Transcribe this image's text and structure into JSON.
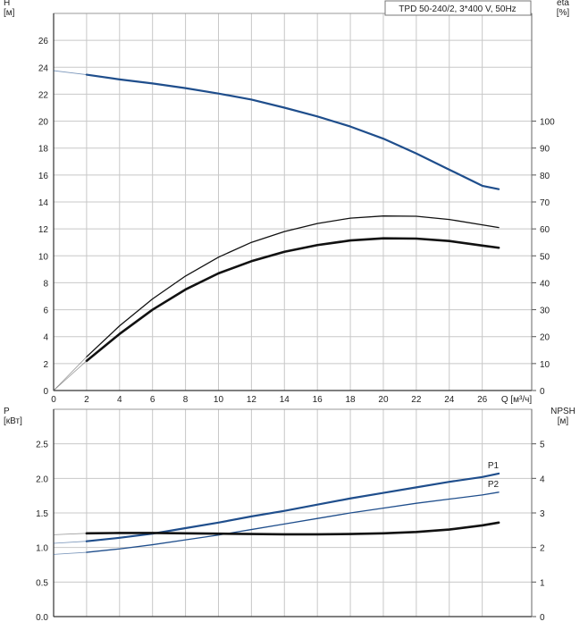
{
  "chart_data": [
    {
      "type": "line",
      "title": "TPD 50-240/2, 3*400 V, 50Hz",
      "xlabel": "Q [м³/ч]",
      "ylabel": "H\n[м]",
      "y2label": "eta\n[%]",
      "xlim": [
        0,
        29
      ],
      "ylim": [
        0,
        28
      ],
      "y2lim": [
        0,
        140
      ],
      "xticks": [
        0,
        2,
        4,
        6,
        8,
        10,
        12,
        14,
        16,
        18,
        20,
        22,
        24,
        26
      ],
      "xtick_labels": [
        "0",
        "2",
        "4",
        "6",
        "8",
        "10",
        "12",
        "14",
        "16",
        "18",
        "20",
        "22",
        "24",
        "26"
      ],
      "yticks": [
        0,
        2,
        4,
        6,
        8,
        10,
        12,
        14,
        16,
        18,
        20,
        22,
        24,
        26
      ],
      "ytick_labels": [
        "0",
        "2",
        "4",
        "6",
        "8",
        "10",
        "12",
        "14",
        "16",
        "18",
        "20",
        "22",
        "24",
        "26"
      ],
      "y2ticks": [
        0,
        10,
        20,
        30,
        40,
        50,
        60,
        70,
        80,
        90,
        100
      ],
      "y2tick_labels": [
        "0",
        "10",
        "20",
        "30",
        "40",
        "50",
        "60",
        "70",
        "80",
        "90",
        "100"
      ],
      "grid": true,
      "series": [
        {
          "color": "#1f4e8c",
          "axis": "left",
          "style": "main",
          "x": [
            2,
            4,
            6,
            8,
            10,
            12,
            14,
            16,
            18,
            20,
            22,
            24,
            26,
            27
          ],
          "values": [
            23.45,
            23.1,
            22.8,
            22.45,
            22.05,
            21.6,
            21.0,
            20.35,
            19.6,
            18.7,
            17.6,
            16.4,
            15.2,
            14.95
          ]
        },
        {
          "color": "#1f4e8c",
          "axis": "left",
          "style": "extrap",
          "x": [
            0,
            2
          ],
          "values": [
            23.75,
            23.45
          ]
        },
        {
          "color": "#111111",
          "axis": "right",
          "style": "thin",
          "x": [
            2,
            4,
            6,
            8,
            10,
            12,
            14,
            16,
            18,
            20,
            22,
            24,
            26,
            27
          ],
          "values": [
            12.5,
            24,
            34,
            42.5,
            49.5,
            55,
            59,
            62,
            64,
            64.8,
            64.7,
            63.5,
            61.5,
            60.5
          ]
        },
        {
          "color": "#555555",
          "axis": "right",
          "style": "extrap",
          "x": [
            0,
            2
          ],
          "values": [
            0,
            12.5
          ]
        },
        {
          "color": "#111111",
          "axis": "right",
          "style": "thick",
          "x": [
            2,
            4,
            6,
            8,
            10,
            12,
            14,
            16,
            18,
            20,
            22,
            24,
            26,
            27
          ],
          "values": [
            11,
            21,
            30,
            37.5,
            43.5,
            48,
            51.5,
            54,
            55.7,
            56.5,
            56.4,
            55.5,
            53.8,
            53
          ]
        },
        {
          "color": "#555555",
          "axis": "right",
          "style": "extrap",
          "x": [
            0,
            2
          ],
          "values": [
            0,
            11
          ]
        }
      ]
    },
    {
      "type": "line",
      "ylabel": "P\n[кВт]",
      "y2label": "NPSH\n[м]",
      "xlim": [
        0,
        29
      ],
      "ylim": [
        0,
        3.0
      ],
      "y2lim": [
        0,
        6
      ],
      "yticks": [
        0,
        0.5,
        1.0,
        1.5,
        2.0,
        2.5
      ],
      "ytick_labels": [
        "0.0",
        "0.5",
        "1.0",
        "1.5",
        "2.0",
        "2.5"
      ],
      "y2ticks": [
        0,
        1,
        2,
        3,
        4,
        5
      ],
      "y2tick_labels": [
        "0",
        "1",
        "2",
        "3",
        "4",
        "5"
      ],
      "grid": true,
      "series": [
        {
          "name": "P1",
          "color": "#1f4e8c",
          "axis": "left",
          "style": "main",
          "x": [
            2,
            4,
            6,
            8,
            10,
            12,
            14,
            16,
            18,
            20,
            22,
            24,
            26,
            27
          ],
          "values": [
            1.09,
            1.14,
            1.2,
            1.28,
            1.36,
            1.45,
            1.53,
            1.62,
            1.71,
            1.79,
            1.87,
            1.95,
            2.02,
            2.07
          ]
        },
        {
          "color": "#1f4e8c",
          "axis": "left",
          "style": "extrap",
          "x": [
            0,
            2
          ],
          "values": [
            1.06,
            1.09
          ]
        },
        {
          "name": "P2",
          "color": "#1f4e8c",
          "axis": "left",
          "style": "thin",
          "x": [
            2,
            4,
            6,
            8,
            10,
            12,
            14,
            16,
            18,
            20,
            22,
            24,
            26,
            27
          ],
          "values": [
            0.93,
            0.98,
            1.04,
            1.11,
            1.18,
            1.26,
            1.34,
            1.42,
            1.5,
            1.57,
            1.64,
            1.7,
            1.76,
            1.8
          ]
        },
        {
          "color": "#1f4e8c",
          "axis": "left",
          "style": "extrap",
          "x": [
            0,
            2
          ],
          "values": [
            0.9,
            0.93
          ]
        },
        {
          "color": "#111111",
          "axis": "right",
          "style": "thick",
          "x": [
            2,
            4,
            6,
            8,
            10,
            12,
            14,
            16,
            18,
            20,
            22,
            24,
            26,
            27
          ],
          "values": [
            2.41,
            2.42,
            2.42,
            2.41,
            2.4,
            2.39,
            2.38,
            2.38,
            2.39,
            2.41,
            2.45,
            2.52,
            2.64,
            2.72
          ]
        },
        {
          "color": "#555555",
          "axis": "right",
          "style": "extrap",
          "x": [
            0,
            2
          ],
          "values": [
            2.37,
            2.41
          ]
        }
      ]
    }
  ]
}
